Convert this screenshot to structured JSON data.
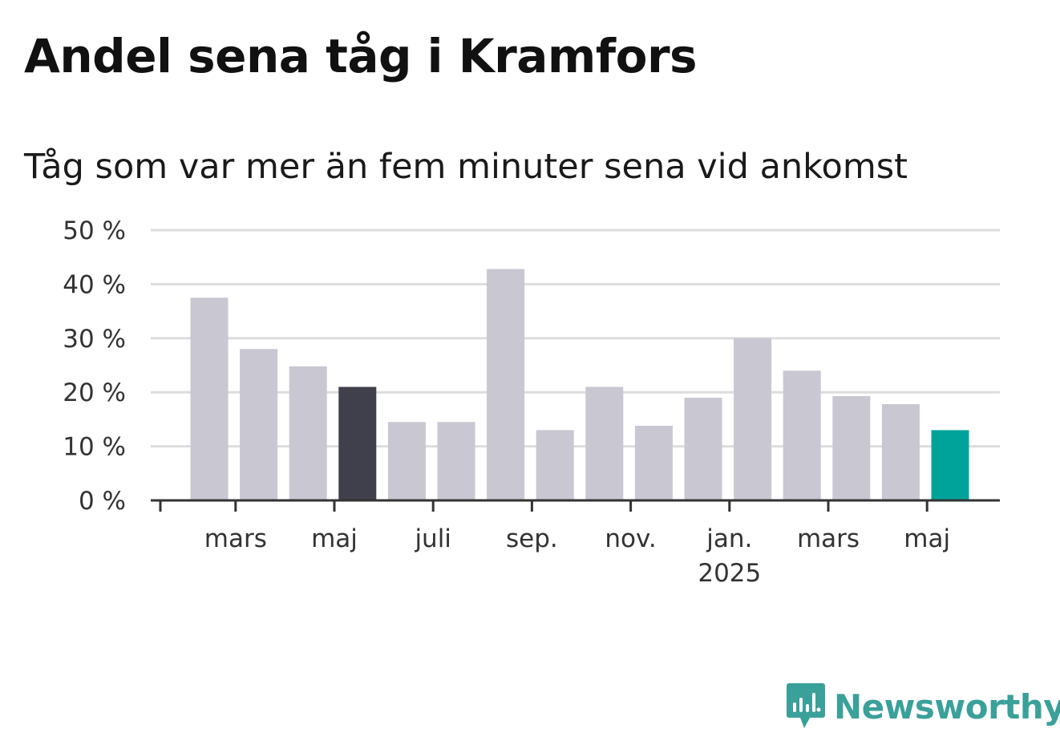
{
  "title": "Andel sena tåg i Kramfors",
  "subtitle": "Tåg som var mer än fem minuter sena vid ankomst",
  "brand": {
    "name": "Newsworthy",
    "color": "#3aa09a"
  },
  "colors": {
    "default_bar": "#c8c7d2",
    "highlight_bar": "#403f4c",
    "latest_bar": "#00a39a",
    "gridline": "#dddddd",
    "axis": "#333333"
  },
  "chart_data": {
    "type": "bar",
    "ylim": [
      0,
      50
    ],
    "yticks": [
      0,
      10,
      20,
      30,
      40,
      50
    ],
    "ytick_labels": [
      "0 %",
      "10 %",
      "20 %",
      "30 %",
      "40 %",
      "50 %"
    ],
    "grid": true,
    "months": [
      "2024-02",
      "2024-03",
      "2024-04",
      "2024-05",
      "2024-06",
      "2024-07",
      "2024-08",
      "2024-09",
      "2024-10",
      "2024-11",
      "2024-12",
      "2025-01",
      "2025-02",
      "2025-03",
      "2025-04",
      "2025-05"
    ],
    "values": [
      37.5,
      28,
      24.8,
      21,
      14.5,
      14.5,
      42.8,
      13,
      21,
      13.8,
      19,
      30,
      24,
      19.3,
      17.8,
      13
    ],
    "highlight": [
      {
        "month": "2024-05",
        "role": "highlight"
      },
      {
        "month": "2025-05",
        "role": "latest"
      }
    ],
    "xtick_labels": [
      {
        "month": "2024-03",
        "label": "mars",
        "sublabel": ""
      },
      {
        "month": "2024-05",
        "label": "maj",
        "sublabel": ""
      },
      {
        "month": "2024-07",
        "label": "juli",
        "sublabel": ""
      },
      {
        "month": "2024-09",
        "label": "sep.",
        "sublabel": ""
      },
      {
        "month": "2024-11",
        "label": "nov.",
        "sublabel": ""
      },
      {
        "month": "2025-01",
        "label": "jan.",
        "sublabel": "2025"
      },
      {
        "month": "2025-03",
        "label": "mars",
        "sublabel": ""
      },
      {
        "month": "2025-05",
        "label": "maj",
        "sublabel": ""
      }
    ]
  }
}
